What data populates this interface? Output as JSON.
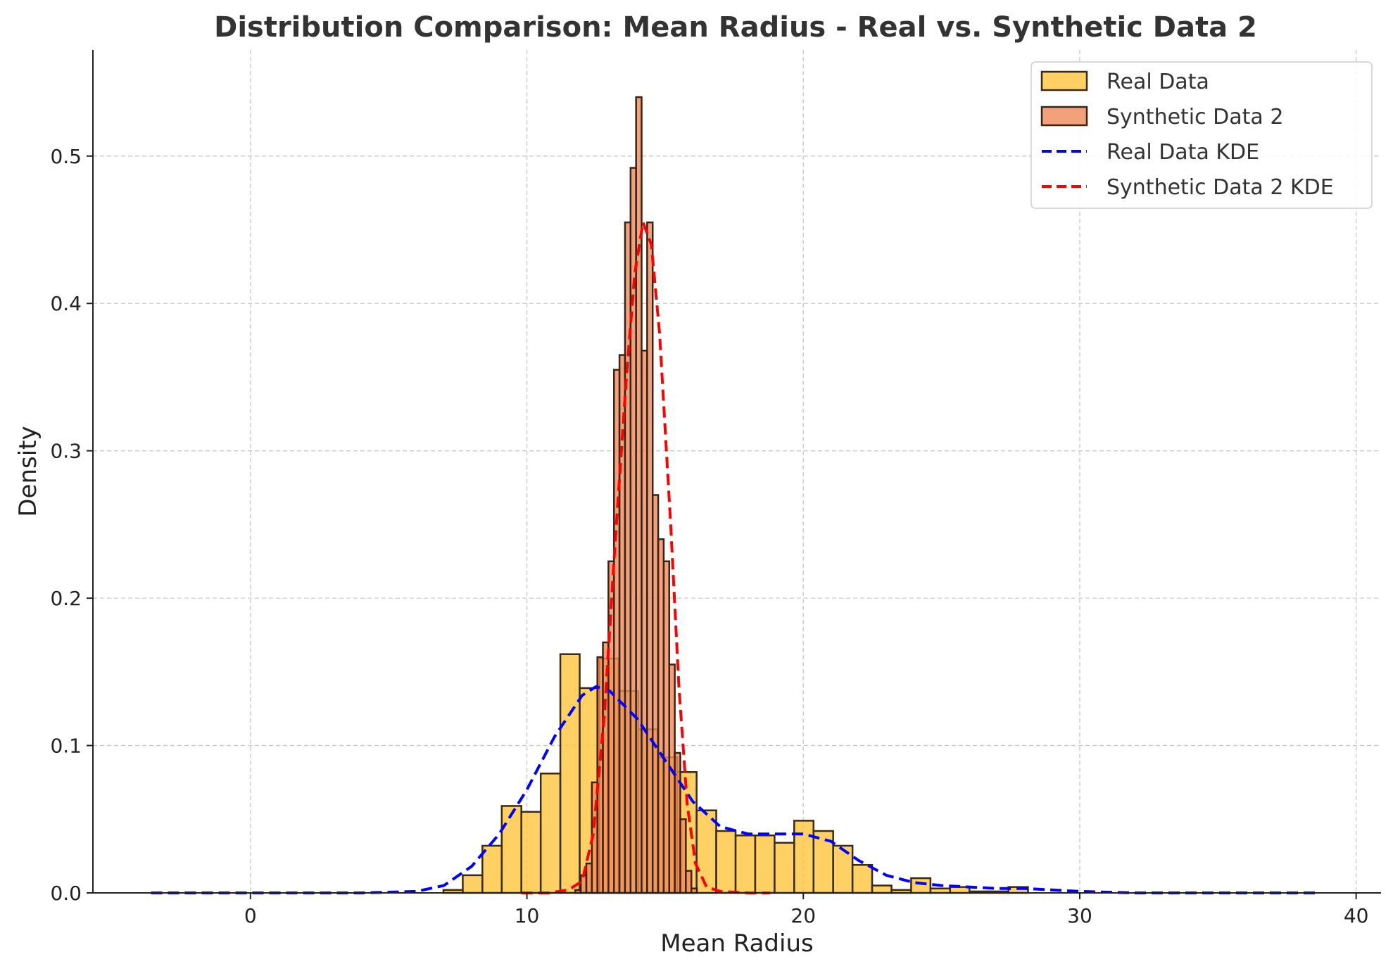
{
  "chart_data": {
    "type": "bar",
    "subtype": "histogram-with-kde",
    "title": "Distribution Comparison: Mean Radius - Real vs. Synthetic Data 2",
    "xlabel": "Mean Radius",
    "ylabel": "Density",
    "xlim": [
      -5.7,
      40.9
    ],
    "ylim": [
      0,
      0.572
    ],
    "x_ticks": [
      0,
      10,
      20,
      30,
      40
    ],
    "y_ticks": [
      0.0,
      0.1,
      0.2,
      0.3,
      0.4,
      0.5
    ],
    "x_tick_labels": [
      "0",
      "10",
      "20",
      "30",
      "40"
    ],
    "y_tick_labels": [
      "0.0",
      "0.1",
      "0.2",
      "0.3",
      "0.4",
      "0.5"
    ],
    "grid": true,
    "legend_position": "top-right",
    "series": [
      {
        "name": "Real Data",
        "kind": "histogram",
        "color": "#FFC53D",
        "edge_color": "#3a2a10",
        "bin_edges": [
          6.98,
          7.68,
          8.39,
          9.09,
          9.8,
          10.5,
          11.21,
          11.91,
          12.62,
          13.32,
          14.03,
          14.73,
          15.44,
          16.14,
          16.85,
          17.55,
          18.26,
          18.96,
          19.67,
          20.37,
          21.08,
          21.78,
          22.49,
          23.19,
          23.9,
          24.6,
          25.31,
          26.01,
          26.72,
          27.42,
          28.13
        ],
        "values": [
          0.002,
          0.012,
          0.032,
          0.059,
          0.055,
          0.081,
          0.162,
          0.139,
          0.159,
          0.137,
          0.111,
          0.092,
          0.082,
          0.056,
          0.042,
          0.039,
          0.039,
          0.034,
          0.049,
          0.042,
          0.032,
          0.019,
          0.005,
          0.002,
          0.01,
          0.003,
          0.004,
          0.001,
          0.001,
          0.004
        ]
      },
      {
        "name": "Synthetic Data 2",
        "kind": "histogram",
        "color": "#F0895A",
        "edge_color": "#3a2214",
        "bin_edges": [
          11.75,
          11.95,
          12.15,
          12.35,
          12.55,
          12.75,
          12.95,
          13.15,
          13.35,
          13.55,
          13.75,
          13.95,
          14.15,
          14.35,
          14.55,
          14.75,
          14.95,
          15.15,
          15.35,
          15.55,
          15.75,
          15.95,
          16.15
        ],
        "values": [
          0.002,
          0.012,
          0.02,
          0.075,
          0.16,
          0.17,
          0.225,
          0.355,
          0.365,
          0.455,
          0.492,
          0.54,
          0.368,
          0.455,
          0.27,
          0.24,
          0.225,
          0.155,
          0.095,
          0.05,
          0.015,
          0.003
        ]
      },
      {
        "name": "Real Data KDE",
        "kind": "line",
        "style": "dashed",
        "color": "#0000FF",
        "x": [
          -3.6,
          0,
          4,
          6,
          7,
          8,
          9,
          10,
          11,
          12,
          12.5,
          13,
          14,
          15,
          16,
          17,
          18,
          19,
          20,
          21,
          22,
          23,
          24,
          25,
          26,
          27,
          28,
          29,
          30,
          32,
          35,
          38.7
        ],
        "y": [
          0,
          0,
          0,
          0.001,
          0.005,
          0.018,
          0.04,
          0.07,
          0.106,
          0.134,
          0.14,
          0.137,
          0.118,
          0.09,
          0.062,
          0.045,
          0.04,
          0.04,
          0.04,
          0.035,
          0.022,
          0.012,
          0.007,
          0.005,
          0.004,
          0.003,
          0.003,
          0.002,
          0.001,
          0,
          0,
          0
        ]
      },
      {
        "name": "Synthetic Data 2 KDE",
        "kind": "line",
        "style": "dashed",
        "color": "#FF0000",
        "x": [
          9.8,
          10.8,
          11.5,
          12.0,
          12.4,
          12.8,
          13.2,
          13.6,
          13.9,
          14.2,
          14.5,
          14.8,
          15.2,
          15.5,
          15.8,
          16.1,
          16.5,
          17.0,
          18.0,
          18.8
        ],
        "y": [
          0,
          0,
          0.002,
          0.008,
          0.04,
          0.12,
          0.24,
          0.35,
          0.42,
          0.455,
          0.44,
          0.38,
          0.25,
          0.14,
          0.06,
          0.02,
          0.004,
          0.001,
          0,
          0
        ]
      }
    ]
  }
}
